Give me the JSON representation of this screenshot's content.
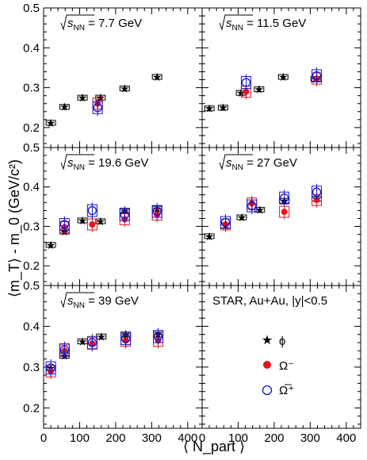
{
  "figure": {
    "ylabel": "⟨m_T⟩ - m_0 (GeV/c²)",
    "xlabel": "⟨ N_part ⟩",
    "x_ticks": [
      "0",
      "100",
      "200",
      "300",
      "400"
    ],
    "y_ticks": [
      "0.2",
      "0.3",
      "0.4",
      "0.5"
    ],
    "legend_header": "STAR, Au+Au, |y|<0.5",
    "legend_items": [
      "ϕ",
      "Ω⁻",
      "Ω̅⁺"
    ],
    "colors": {
      "phi": "#000000",
      "omega": "#e8151b",
      "antiomega": "#1515d0",
      "phi_sys": "#000000",
      "omega_sys": "#e8151b",
      "antiomega_sys": "#1515d0"
    }
  },
  "chart_data": [
    {
      "type": "scatter",
      "energy": "7.7 GeV",
      "xlim": [
        0,
        440
      ],
      "ylim": [
        0.15,
        0.5
      ],
      "series": [
        {
          "name": "ϕ",
          "x": [
            20,
            58,
            108,
            158,
            225,
            315
          ],
          "y": [
            0.212,
            0.252,
            0.275,
            0.275,
            0.298,
            0.327
          ]
        },
        {
          "name": "Ω⁻",
          "x": [
            150
          ],
          "y": [
            0.26
          ]
        },
        {
          "name": "Ω̅⁺",
          "x": [
            150
          ],
          "y": [
            0.25
          ]
        }
      ]
    },
    {
      "type": "scatter",
      "energy": "11.5 GeV",
      "xlim": [
        0,
        440
      ],
      "ylim": [
        0.15,
        0.5
      ],
      "series": [
        {
          "name": "ϕ",
          "x": [
            20,
            58,
            108,
            158,
            225,
            315
          ],
          "y": [
            0.248,
            0.25,
            0.287,
            0.296,
            0.327,
            0.322
          ]
        },
        {
          "name": "Ω⁻",
          "x": [
            122,
            318
          ],
          "y": [
            0.29,
            0.323
          ]
        },
        {
          "name": "Ω̅⁺",
          "x": [
            122,
            318
          ],
          "y": [
            0.313,
            0.33
          ]
        }
      ]
    },
    {
      "type": "scatter",
      "energy": "19.6 GeV",
      "xlim": [
        0,
        440
      ],
      "ylim": [
        0.15,
        0.5
      ],
      "series": [
        {
          "name": "ϕ",
          "x": [
            20,
            58,
            108,
            158,
            225,
            315
          ],
          "y": [
            0.253,
            0.287,
            0.315,
            0.313,
            0.34,
            0.345
          ]
        },
        {
          "name": "Ω⁻",
          "x": [
            58,
            135,
            225,
            315
          ],
          "y": [
            0.298,
            0.305,
            0.318,
            0.33
          ]
        },
        {
          "name": "Ω̅⁺",
          "x": [
            58,
            135,
            225,
            315
          ],
          "y": [
            0.305,
            0.34,
            0.33,
            0.338
          ]
        }
      ]
    },
    {
      "type": "scatter",
      "energy": "27 GeV",
      "xlim": [
        0,
        440
      ],
      "ylim": [
        0.15,
        0.5
      ],
      "series": [
        {
          "name": "ϕ",
          "x": [
            20,
            65,
            110,
            160,
            228,
            318
          ],
          "y": [
            0.275,
            0.302,
            0.323,
            0.342,
            0.365,
            0.37
          ]
        },
        {
          "name": "Ω⁻",
          "x": [
            65,
            138,
            228,
            318
          ],
          "y": [
            0.305,
            0.358,
            0.337,
            0.367
          ]
        },
        {
          "name": "Ω̅⁺",
          "x": [
            65,
            138,
            228,
            318
          ],
          "y": [
            0.31,
            0.352,
            0.372,
            0.387
          ]
        }
      ]
    },
    {
      "type": "scatter",
      "energy": "39 GeV",
      "xlim": [
        0,
        440
      ],
      "ylim": [
        0.15,
        0.5
      ],
      "series": [
        {
          "name": "ϕ",
          "x": [
            20,
            58,
            108,
            160,
            228,
            318
          ],
          "y": [
            0.298,
            0.328,
            0.363,
            0.375,
            0.38,
            0.38
          ]
        },
        {
          "name": "Ω⁻",
          "x": [
            20,
            58,
            135,
            228,
            318
          ],
          "y": [
            0.29,
            0.34,
            0.358,
            0.365,
            0.365
          ]
        },
        {
          "name": "Ω̅⁺",
          "x": [
            20,
            58,
            135,
            228,
            318
          ],
          "y": [
            0.298,
            0.342,
            0.36,
            0.37,
            0.375
          ]
        }
      ]
    }
  ]
}
